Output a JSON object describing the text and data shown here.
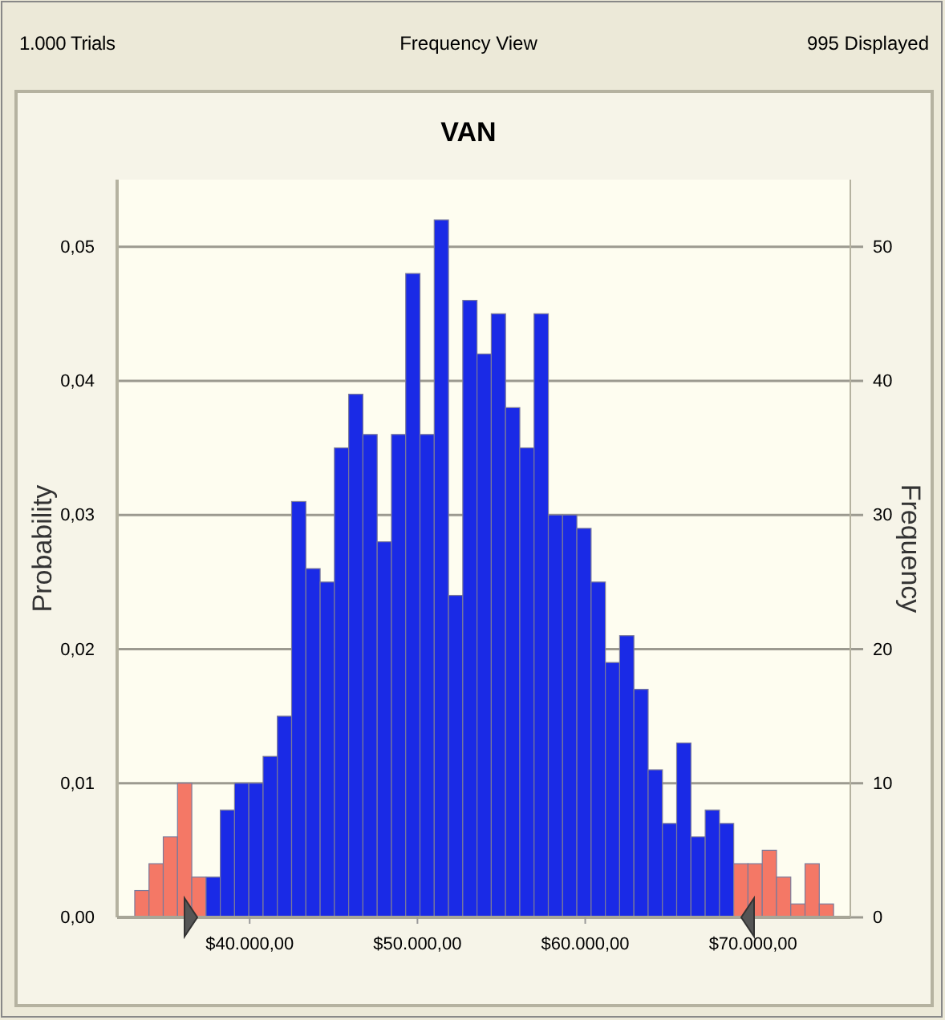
{
  "chart_data": {
    "type": "histogram",
    "title": "VAN",
    "subtitle": "Frequency View",
    "annotations": [
      "1.000 Trials",
      "995 Displayed"
    ],
    "xlabel": null,
    "ylabel": "Probability",
    "y2label": "Frequency",
    "bins": [
      33150,
      34000,
      34850,
      35700,
      36550,
      37400,
      38250,
      39100,
      39950,
      40800,
      41650,
      42500,
      43350,
      44200,
      45050,
      45900,
      46750,
      47600,
      48450,
      49300,
      50150,
      51000,
      51850,
      52700,
      53550,
      54400,
      55250,
      56100,
      56950,
      57800,
      58650,
      59500,
      60350,
      61200,
      62050,
      62900,
      63750,
      64600,
      65450,
      66300,
      67150,
      68000,
      68850,
      69700,
      70550,
      71400,
      72250,
      73100,
      73950,
      74800
    ],
    "series": [
      {
        "axis": "y2",
        "values": [
          2,
          4,
          6,
          10,
          3,
          3,
          8,
          10,
          10,
          12,
          15,
          31,
          26,
          25,
          35,
          39,
          36,
          28,
          36,
          48,
          36,
          52,
          24,
          46,
          42,
          45,
          38,
          35,
          45,
          30,
          30,
          29,
          25,
          19,
          21,
          17,
          11,
          7,
          13,
          6,
          8,
          7,
          4,
          4,
          5,
          3,
          1,
          4,
          1
        ],
        "colors": [
          "#f47866",
          "#f47866",
          "#f47866",
          "#f47866",
          "#f47866",
          "#1a2ae6",
          "#1a2ae6",
          "#1a2ae6",
          "#1a2ae6",
          "#1a2ae6",
          "#1a2ae6",
          "#1a2ae6",
          "#1a2ae6",
          "#1a2ae6",
          "#1a2ae6",
          "#1a2ae6",
          "#1a2ae6",
          "#1a2ae6",
          "#1a2ae6",
          "#1a2ae6",
          "#1a2ae6",
          "#1a2ae6",
          "#1a2ae6",
          "#1a2ae6",
          "#1a2ae6",
          "#1a2ae6",
          "#1a2ae6",
          "#1a2ae6",
          "#1a2ae6",
          "#1a2ae6",
          "#1a2ae6",
          "#1a2ae6",
          "#1a2ae6",
          "#1a2ae6",
          "#1a2ae6",
          "#1a2ae6",
          "#1a2ae6",
          "#1a2ae6",
          "#1a2ae6",
          "#1a2ae6",
          "#1a2ae6",
          "#1a2ae6",
          "#f47866",
          "#f47866",
          "#f47866",
          "#f47866",
          "#f47866",
          "#f47866",
          "#f47866"
        ]
      }
    ],
    "xlim": [
      32100,
      75800
    ],
    "xticks": [
      {
        "value": 40000,
        "label": "$40.000,00"
      },
      {
        "value": 50000,
        "label": "$50.000,00"
      },
      {
        "value": 60000,
        "label": "$60.000,00"
      },
      {
        "value": 70000,
        "label": "$70.000,00"
      }
    ],
    "ylim": [
      0,
      0.055
    ],
    "yticks": [
      {
        "value": 0,
        "label": "0,00"
      },
      {
        "value": 0.01,
        "label": "0,01"
      },
      {
        "value": 0.02,
        "label": "0,02"
      },
      {
        "value": 0.03,
        "label": "0,03"
      },
      {
        "value": 0.04,
        "label": "0,04"
      },
      {
        "value": 0.05,
        "label": "0,05"
      }
    ],
    "y2lim": [
      0,
      55
    ],
    "y2ticks": [
      0,
      10,
      20,
      30,
      40,
      50
    ],
    "grid": "y2"
  }
}
